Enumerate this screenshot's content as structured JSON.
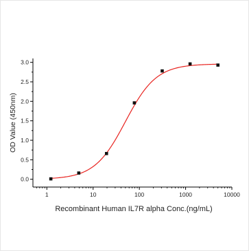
{
  "chart_data": {
    "type": "scatter",
    "title": "",
    "xlabel": "Recombinant Human IL7R alpha Conc.(ng/mL)",
    "ylabel": "OD Value (450nm)",
    "x_scale": "log10",
    "xlim": [
      0.5,
      10000
    ],
    "ylim": [
      -0.2,
      3.1
    ],
    "x_ticks": [
      1,
      10,
      100,
      1000,
      10000
    ],
    "x_tick_labels": [
      "1",
      "10",
      "100",
      "1000",
      "10000"
    ],
    "y_ticks": [
      0.0,
      0.5,
      1.0,
      1.5,
      2.0,
      2.5,
      3.0
    ],
    "y_tick_labels": [
      "0.0",
      "0.5",
      "1.0",
      "1.5",
      "2.0",
      "2.5",
      "3.0"
    ],
    "grid": false,
    "legend": "none",
    "series": [
      {
        "x": [
          1.22,
          4.9,
          19.5,
          78,
          312,
          1250,
          5000
        ],
        "y": [
          0.01,
          0.16,
          0.66,
          1.96,
          2.78,
          2.96,
          2.93
        ],
        "marker": "square",
        "color": "#111111",
        "fit": {
          "type": "4PL",
          "bottom": 0.0,
          "top": 2.96,
          "ec50": 50,
          "hill": 1.3,
          "color": "#e8231f"
        }
      }
    ]
  }
}
